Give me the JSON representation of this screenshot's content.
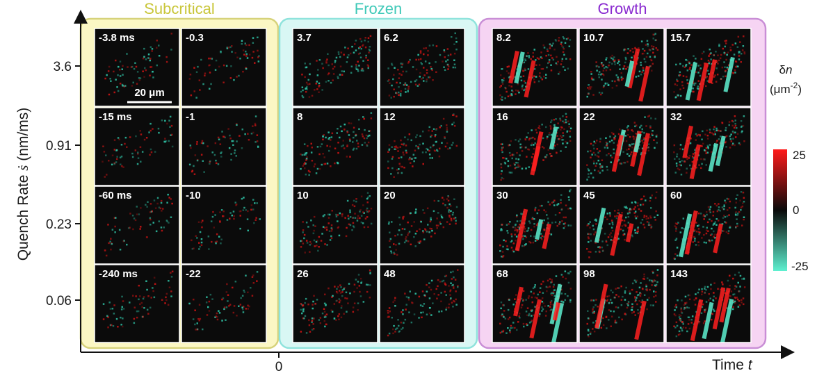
{
  "regions": [
    {
      "title": "Subcritical",
      "fill": "#fbf7c4",
      "stroke": "#d6d27a",
      "title_color": "#c9c63a"
    },
    {
      "title": "Frozen",
      "fill": "#d9f7f4",
      "stroke": "#8fe3dc",
      "title_color": "#3fc9b8"
    },
    {
      "title": "Growth",
      "fill": "#f6d4f3",
      "stroke": "#c98ed6",
      "title_color": "#8a2bd0"
    }
  ],
  "y_axis": {
    "label": "Quench Rate ",
    "label_symbol": "ṡ",
    "label_unit": " (nm/ms)",
    "ticks": [
      "3.6",
      "0.91",
      "0.23",
      "0.06"
    ]
  },
  "x_axis": {
    "label": "Time ",
    "label_symbol": "t",
    "zero_label": "0"
  },
  "scale_bar_label": "20 μm",
  "colorbar": {
    "title_symbol": "δ",
    "title_var": "n",
    "unit_base": "(μm",
    "unit_exp": "-2",
    "unit_close": ")",
    "max_label": "25",
    "mid_label": "0",
    "min_label": "-25",
    "color_max": "#ff1a1a",
    "color_mid": "#0a0a0a",
    "color_min": "#5ef0d0"
  },
  "panels": {
    "subcritical": [
      [
        "-3.8 ms",
        "-0.3"
      ],
      [
        "-15 ms",
        "-1"
      ],
      [
        "-60 ms",
        "-10"
      ],
      [
        "-240 ms",
        "-22"
      ]
    ],
    "frozen": [
      [
        "3.7",
        "6.2"
      ],
      [
        "8",
        "12"
      ],
      [
        "10",
        "20"
      ],
      [
        "26",
        "48"
      ]
    ],
    "growth": [
      [
        "8.2",
        "10.7",
        "15.7"
      ],
      [
        "16",
        "22",
        "32"
      ],
      [
        "30",
        "45",
        "60"
      ],
      [
        "68",
        "98",
        "143"
      ]
    ]
  }
}
